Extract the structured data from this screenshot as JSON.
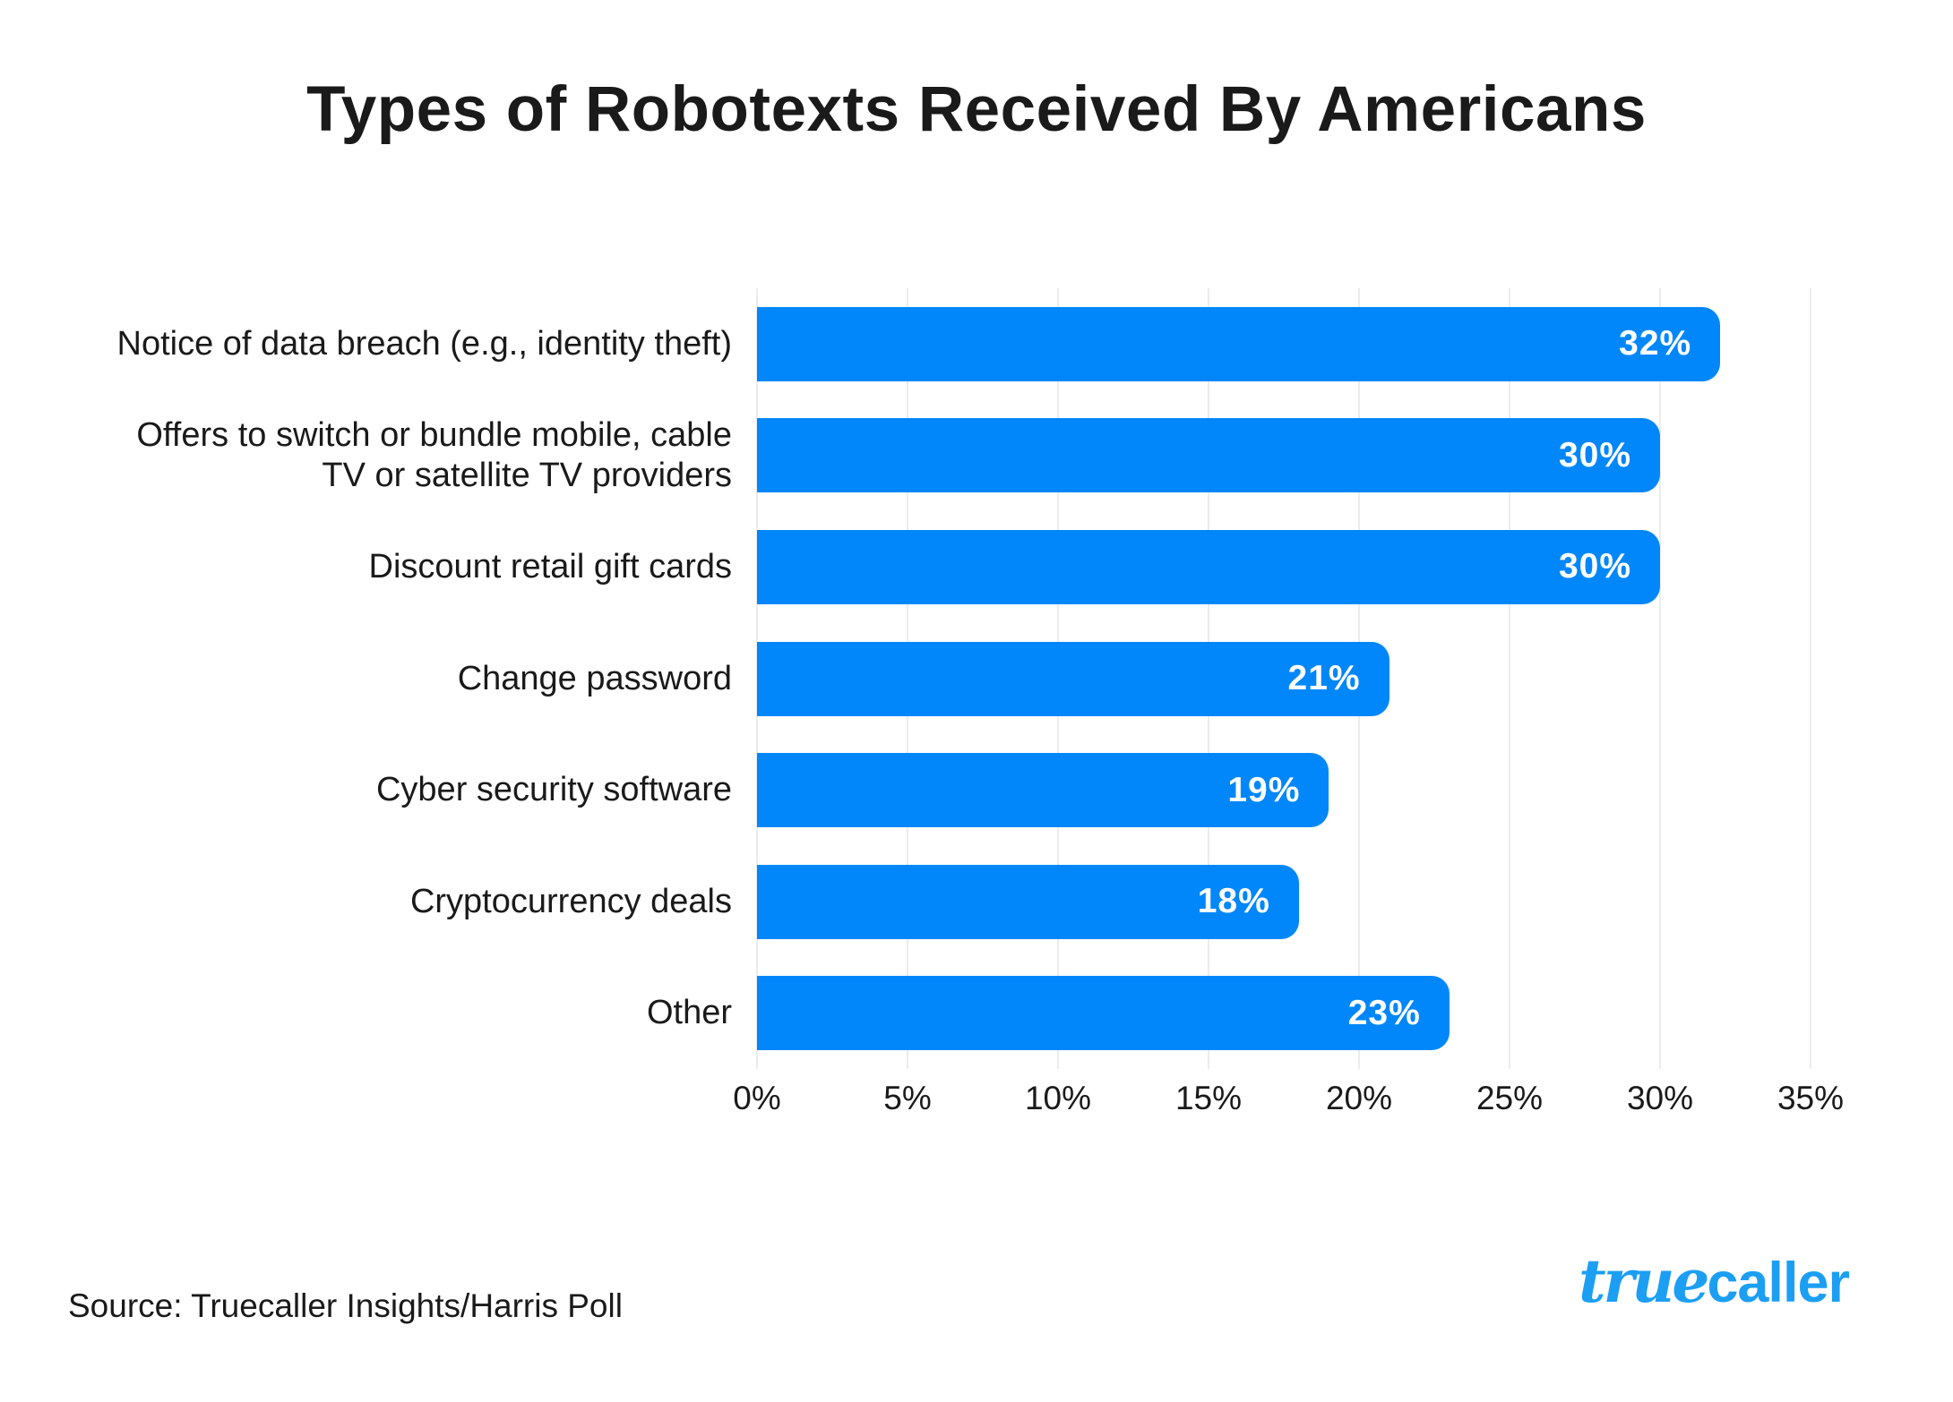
{
  "title": "Types of Robotexts Received By Americans",
  "source": "Source: Truecaller Insights/Harris Poll",
  "logo": {
    "script_part": "true",
    "bold_part": "caller"
  },
  "colors": {
    "bar": "#0287FB",
    "logo": "#1C9FF3",
    "grid": "#ECECEC",
    "text": "#1A1A1A",
    "value_label": "#FFFFFF",
    "background": "#FFFFFF"
  },
  "chart_data": {
    "type": "bar",
    "orientation": "horizontal",
    "title": "Types of Robotexts Received By Americans",
    "categories": [
      "Notice of data breach (e.g., identity theft)",
      "Offers to switch or bundle mobile, cable\nTV or satellite TV providers",
      "Discount retail gift cards",
      "Change password",
      "Cyber security software",
      "Cryptocurrency deals",
      "Other"
    ],
    "values": [
      32,
      30,
      30,
      21,
      19,
      18,
      23
    ],
    "value_labels": [
      "32%",
      "30%",
      "30%",
      "21%",
      "19%",
      "18%",
      "23%"
    ],
    "xlabel": "",
    "ylabel": "",
    "xlim": [
      0,
      35
    ],
    "x_tick_values": [
      0,
      5,
      10,
      15,
      20,
      25,
      30,
      35
    ],
    "x_ticks": [
      "0%",
      "5%",
      "10%",
      "15%",
      "20%",
      "25%",
      "30%",
      "35%"
    ],
    "grid": true,
    "legend": false
  }
}
